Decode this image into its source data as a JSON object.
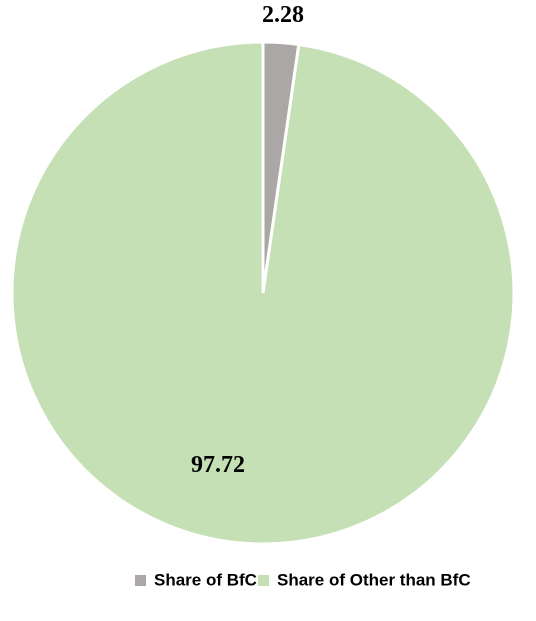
{
  "chart_data": {
    "type": "pie",
    "categories": [
      "Share of BfC",
      "Share of Other than BfC"
    ],
    "values": [
      2.28,
      97.72
    ],
    "colors": [
      "#aba7a7",
      "#c5e0b4"
    ],
    "legend": "bottom"
  }
}
